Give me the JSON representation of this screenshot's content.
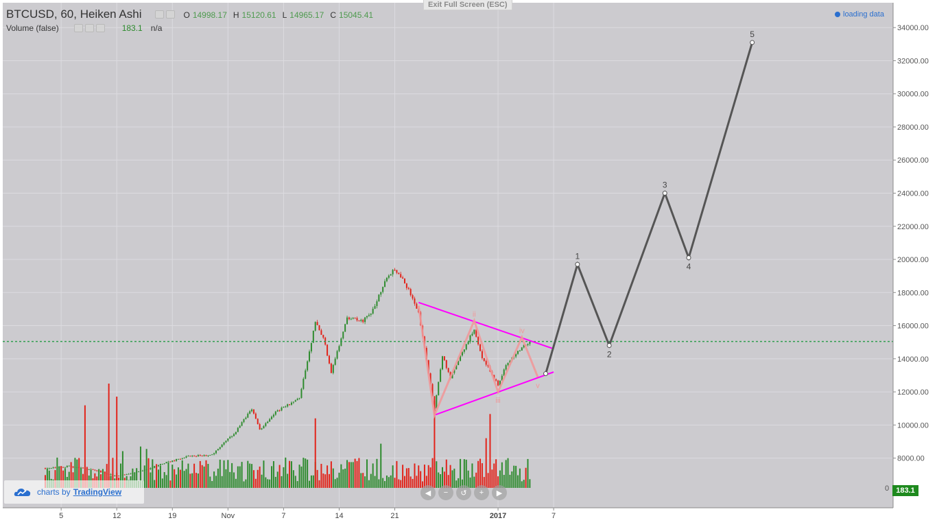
{
  "legend": {
    "symbol": "BTCUSD, 60, Heiken Ashi",
    "ohlc": [
      {
        "label": "O",
        "value": "14998.17"
      },
      {
        "label": "H",
        "value": "15120.61"
      },
      {
        "label": "L",
        "value": "14965.17"
      },
      {
        "label": "C",
        "value": "15045.41"
      }
    ],
    "volume_title": "Volume (false)",
    "volume_value": "183.1",
    "volume_na": "n/a"
  },
  "exit_fullscreen_label": "Exit Full Screen (ESC)",
  "loading_label": "loading data",
  "branding": {
    "prefix": "charts by",
    "brand": "TradingView"
  },
  "nav_buttons": [
    {
      "icon": "scroll-left-icon",
      "glyph": "◀"
    },
    {
      "icon": "zoom-out-icon",
      "glyph": "−"
    },
    {
      "icon": "reset-icon",
      "glyph": "↺"
    },
    {
      "icon": "zoom-in-icon",
      "glyph": "+"
    },
    {
      "icon": "scroll-right-icon",
      "glyph": "▶"
    }
  ],
  "last_volume_badge": "183.1",
  "colors": {
    "background": "#cccbcf",
    "grid": "#dcdbe0",
    "up": "#2e8b2e",
    "down": "#e2231a",
    "triangle": "#ff00ff",
    "subwaves": "#f0999a",
    "projection": "#555555",
    "current_price_line": "#2e9e4e"
  },
  "chart_data": {
    "type": "candlestick",
    "symbol": "BTCUSD",
    "interval": "60",
    "style": "Heiken Ashi",
    "y_axis": {
      "range": [
        5000,
        35500
      ],
      "ticks": [
        8000,
        10000,
        12000,
        14000,
        16000,
        18000,
        20000,
        22000,
        24000,
        26000,
        28000,
        30000,
        32000,
        34000
      ],
      "tick_labels": [
        "8000.00",
        "10000.00",
        "12000.00",
        "14000.00",
        "16000.00",
        "18000.00",
        "20000.00",
        "22000.00",
        "24000.00",
        "26000.00",
        "28000.00",
        "30000.00",
        "32000.00",
        "34000.00"
      ],
      "partial_label": "0"
    },
    "x_axis": {
      "range": [
        "2017-11-03",
        "2018-01-16"
      ],
      "ticks": [
        {
          "date": "2017-11-05",
          "label": "5"
        },
        {
          "date": "2017-11-12",
          "label": "12"
        },
        {
          "date": "2017-11-19",
          "label": "19"
        },
        {
          "date": "2017-11-26",
          "label": "Nov"
        },
        {
          "date": "2017-12-03",
          "label": "7"
        },
        {
          "date": "2017-12-10",
          "label": "14"
        },
        {
          "date": "2017-12-17",
          "label": "21"
        },
        {
          "date": "2017-12-30",
          "label": "2017"
        },
        {
          "date": "2018-01-06",
          "label": "7"
        }
      ]
    },
    "current_price": 15045.41,
    "price_path": [
      {
        "date": "2017-11-03",
        "price": 7400
      },
      {
        "date": "2017-11-06",
        "price": 7500
      },
      {
        "date": "2017-11-09",
        "price": 7300
      },
      {
        "date": "2017-11-12",
        "price": 6900
      },
      {
        "date": "2017-11-15",
        "price": 7200
      },
      {
        "date": "2017-11-18",
        "price": 7700
      },
      {
        "date": "2017-11-21",
        "price": 8100
      },
      {
        "date": "2017-11-24",
        "price": 8200
      },
      {
        "date": "2017-11-27",
        "price": 9600
      },
      {
        "date": "2017-11-29",
        "price": 11000
      },
      {
        "date": "2017-11-30",
        "price": 9700
      },
      {
        "date": "2017-12-02",
        "price": 10800
      },
      {
        "date": "2017-12-05",
        "price": 11600
      },
      {
        "date": "2017-12-07",
        "price": 16200
      },
      {
        "date": "2017-12-08",
        "price": 15300
      },
      {
        "date": "2017-12-09",
        "price": 13200
      },
      {
        "date": "2017-12-11",
        "price": 16500
      },
      {
        "date": "2017-12-13",
        "price": 16300
      },
      {
        "date": "2017-12-14",
        "price": 16700
      },
      {
        "date": "2017-12-16",
        "price": 19000
      },
      {
        "date": "2017-12-17",
        "price": 19400
      },
      {
        "date": "2017-12-18",
        "price": 18900
      },
      {
        "date": "2017-12-20",
        "price": 16800
      },
      {
        "date": "2017-12-22",
        "price": 11000
      },
      {
        "date": "2017-12-23",
        "price": 14200
      },
      {
        "date": "2017-12-24",
        "price": 12800
      },
      {
        "date": "2017-12-25",
        "price": 13900
      },
      {
        "date": "2017-12-27",
        "price": 15800
      },
      {
        "date": "2017-12-28",
        "price": 14100
      },
      {
        "date": "2017-12-30",
        "price": 12400
      },
      {
        "date": "2017-12-31",
        "price": 13600
      },
      {
        "date": "2018-01-02",
        "price": 14700
      },
      {
        "date": "2018-01-03",
        "price": 15045
      }
    ],
    "volume": {
      "scale_max": 24000,
      "last_value": 183.1,
      "spikes": [
        {
          "date": "2017-11-11",
          "value": 24000
        },
        {
          "date": "2017-11-12",
          "value": 21000
        },
        {
          "date": "2017-11-08",
          "value": 19000
        },
        {
          "date": "2017-12-07",
          "value": 16000
        },
        {
          "date": "2017-12-22",
          "value": 20000
        },
        {
          "date": "2017-12-29",
          "value": 17000
        }
      ]
    },
    "triangle": {
      "upper": [
        {
          "date": "2017-12-20",
          "price": 17400
        },
        {
          "date": "2018-01-06",
          "price": 14600
        }
      ],
      "lower": [
        {
          "date": "2017-12-22",
          "price": 10600
        },
        {
          "date": "2018-01-06",
          "price": 13200
        }
      ]
    },
    "subwaves": {
      "points": [
        {
          "date": "2017-12-20",
          "price": 17200,
          "label": ""
        },
        {
          "date": "2017-12-22",
          "price": 10600,
          "label": ""
        },
        {
          "date": "2017-12-27",
          "price": 16300,
          "label": "ii"
        },
        {
          "date": "2017-12-30",
          "price": 12000,
          "label": "iii"
        },
        {
          "date": "2018-01-02",
          "price": 15300,
          "label": "iv"
        },
        {
          "date": "2018-01-04",
          "price": 12900,
          "label": "v"
        }
      ]
    },
    "projection": {
      "points": [
        {
          "date": "2018-01-05",
          "price": 13100,
          "label": ""
        },
        {
          "date": "2018-01-09",
          "price": 19700,
          "label": "1"
        },
        {
          "date": "2018-01-13",
          "price": 14800,
          "label": "2"
        },
        {
          "date": "2018-01-20",
          "price": 24000,
          "label": "3"
        },
        {
          "date": "2018-01-23",
          "price": 20100,
          "label": "4"
        },
        {
          "date": "2018-01-31",
          "price": 33100,
          "label": "5"
        }
      ]
    }
  }
}
